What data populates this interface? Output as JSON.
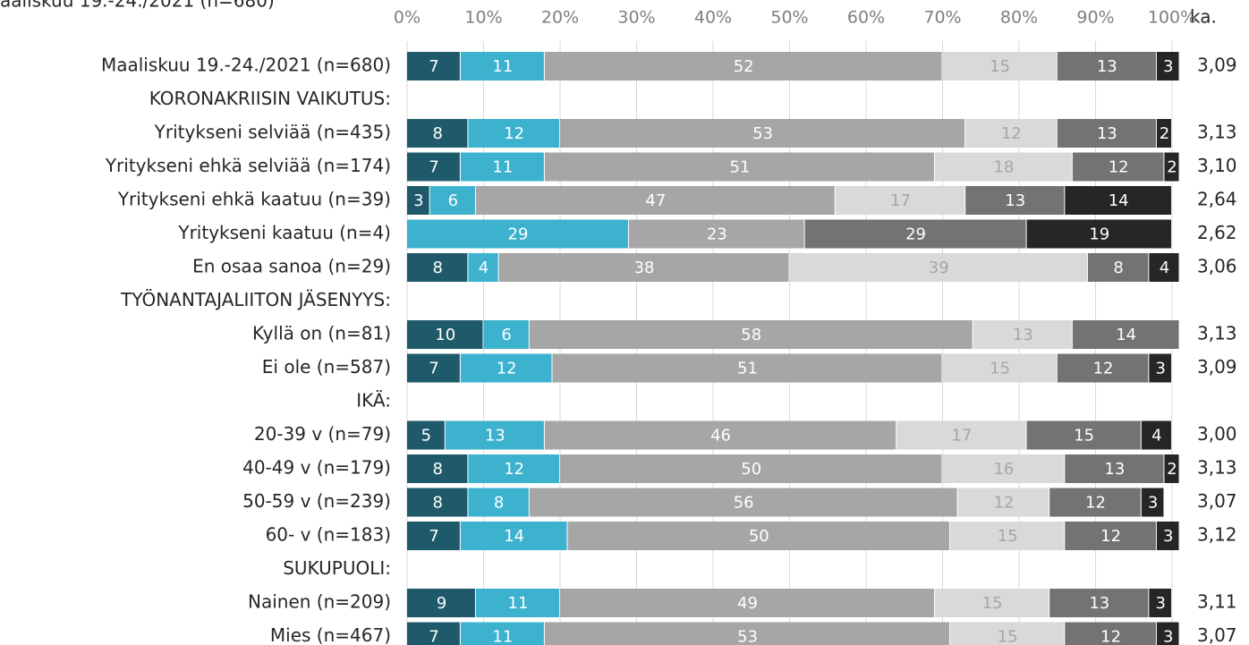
{
  "chart_data": {
    "type": "stacked_barh",
    "title": "aaliskuu 19.-24./2021 (n=680)",
    "categories": [
      "Maaliskuu 19.-24./2021 (n=680)",
      "KORONAKRIISIN VAIKUTUS:",
      "Yritykseni selviää (n=435)",
      "Yritykseni ehkä selviää (n=174)",
      "Yritykseni ehkä kaatuu (n=39)",
      "Yritykseni kaatuu (n=4)",
      "En osaa sanoa (n=29)",
      "TYÖNANTAJALIITON JÄSENYYS:",
      "Kyllä on (n=81)",
      "Ei ole (n=587)",
      "IKÄ:",
      "20-39 v (n=79)",
      "40-49 v (n=179)",
      "50-59 v (n=239)",
      "60- v (n=183)",
      "SUKUPUOLI:",
      "Nainen (n=209)",
      "Mies (n=467)"
    ],
    "series": [
      {
        "color": "#1f5a6b",
        "values": [
          7,
          null,
          8,
          7,
          3,
          null,
          8,
          null,
          10,
          7,
          null,
          5,
          8,
          8,
          7,
          null,
          9,
          7
        ]
      },
      {
        "color": "#3cb2cf",
        "values": [
          11,
          null,
          12,
          11,
          6,
          29,
          4,
          null,
          6,
          12,
          null,
          13,
          12,
          8,
          14,
          null,
          11,
          11
        ]
      },
      {
        "color": "#a6a6a6",
        "values": [
          52,
          null,
          53,
          51,
          47,
          23,
          38,
          null,
          58,
          51,
          null,
          46,
          50,
          56,
          50,
          null,
          49,
          53
        ]
      },
      {
        "color": "#d9d9d9",
        "values": [
          15,
          null,
          12,
          18,
          17,
          null,
          39,
          null,
          13,
          15,
          null,
          17,
          16,
          12,
          15,
          null,
          15,
          15
        ]
      },
      {
        "color": "#737373",
        "values": [
          13,
          null,
          13,
          12,
          13,
          29,
          8,
          null,
          14,
          12,
          null,
          15,
          13,
          12,
          12,
          null,
          13,
          12
        ]
      },
      {
        "color": "#262626",
        "values": [
          3,
          null,
          2,
          2,
          14,
          19,
          4,
          null,
          null,
          3,
          null,
          4,
          2,
          3,
          3,
          null,
          3,
          3
        ]
      }
    ],
    "xlim": [
      0,
      100
    ],
    "xticks": [
      {
        "value": 0,
        "label": "0%"
      },
      {
        "value": 10,
        "label": "10%"
      },
      {
        "value": 20,
        "label": "20%"
      },
      {
        "value": 30,
        "label": "30%"
      },
      {
        "value": 40,
        "label": "40%"
      },
      {
        "value": 50,
        "label": "50%"
      },
      {
        "value": 60,
        "label": "60%"
      },
      {
        "value": 70,
        "label": "70%"
      },
      {
        "value": 80,
        "label": "80%"
      },
      {
        "value": 90,
        "label": "90%"
      },
      {
        "value": 100,
        "label": "100%"
      }
    ],
    "grid": true,
    "mean_header": "ka.",
    "mean_labels": [
      "3,09",
      null,
      "3,13",
      "3,10",
      "2,64",
      "2,62",
      "3,06",
      null,
      "3,13",
      "3,09",
      null,
      "3,00",
      "3,13",
      "3,07",
      "3,12",
      null,
      "3,11",
      "3,07"
    ]
  }
}
